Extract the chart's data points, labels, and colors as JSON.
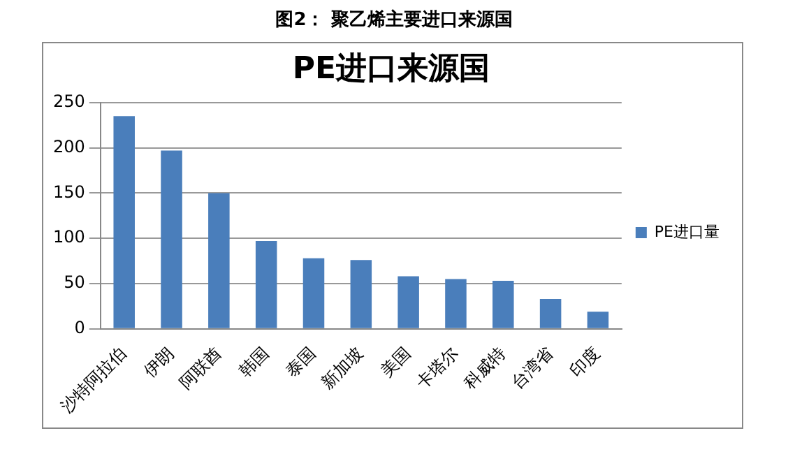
{
  "chart_data": {
    "type": "bar",
    "title": "PE进口来源国",
    "subtitle": "图2： 聚乙烯主要进口来源国",
    "categories": [
      "沙特阿拉伯",
      "伊朗",
      "阿联酋",
      "韩国",
      "泰国",
      "新加坡",
      "美国",
      "卡塔尔",
      "科威特",
      "台湾省",
      "印度"
    ],
    "series": [
      {
        "name": "PE进口量",
        "color": "#4a7ebb",
        "values": [
          235,
          197,
          150,
          97,
          78,
          76,
          58,
          55,
          53,
          33,
          19
        ]
      }
    ],
    "ylim": [
      0,
      250
    ],
    "yticks": [
      0,
      50,
      100,
      150,
      200,
      250
    ],
    "grid": "y",
    "legend": "right"
  }
}
